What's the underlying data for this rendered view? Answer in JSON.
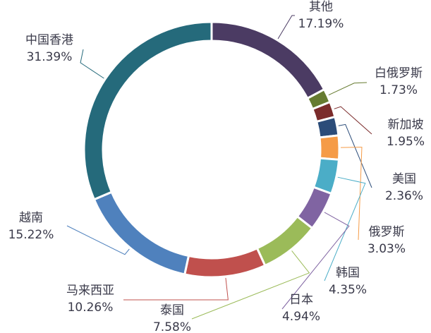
{
  "chart_data": {
    "type": "donut",
    "categories": [
      "其他",
      "白俄罗斯",
      "新加坡",
      "美国",
      "俄罗斯",
      "韩国",
      "日本",
      "泰国",
      "马来西亚",
      "越南",
      "中国香港"
    ],
    "values": [
      17.19,
      1.73,
      1.95,
      2.36,
      3.03,
      4.35,
      4.94,
      7.58,
      10.26,
      15.22,
      31.39
    ],
    "value_labels": [
      "17.19%",
      "1.73%",
      "1.95%",
      "2.36%",
      "3.03%",
      "4.35%",
      "4.94%",
      "7.58%",
      "10.26%",
      "15.22%",
      "31.39%"
    ],
    "colors": [
      "#4b3b63",
      "#667b30",
      "#7b2b2b",
      "#2b4c79",
      "#f59b47",
      "#4badc7",
      "#8064a2",
      "#9bbb59",
      "#c0504d",
      "#4f81bd",
      "#256a7b"
    ]
  }
}
